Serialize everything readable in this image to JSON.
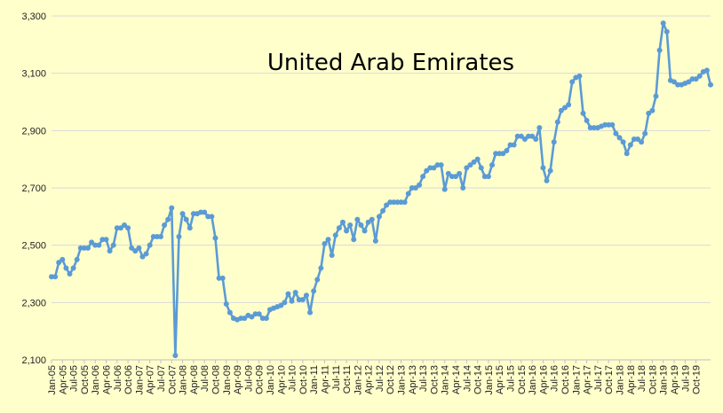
{
  "chart_data": {
    "type": "line",
    "title": "United Arab Emirates",
    "xlabel": "",
    "ylabel": "",
    "ylim": [
      2100,
      3300
    ],
    "yticks": [
      "2,100",
      "2,300",
      "2,500",
      "2,700",
      "2,900",
      "3,100",
      "3,300"
    ],
    "ytick_values": [
      2100,
      2300,
      2500,
      2700,
      2900,
      3100,
      3300
    ],
    "grid": true,
    "legend": "none",
    "line_color": "#5B9BD5",
    "grid_color": "#D9D9D9",
    "background": "#FFFFCC",
    "x_tick_labels": [
      "Jan-05",
      "Apr-05",
      "Jul-05",
      "Oct-05",
      "Jan-06",
      "Apr-06",
      "Jul-06",
      "Oct-06",
      "Jan-07",
      "Apr-07",
      "Jul-07",
      "Oct-07",
      "Jan-08",
      "Apr-08",
      "Jul-08",
      "Oct-08",
      "Jan-09",
      "Apr-09",
      "Jul-09",
      "Oct-09",
      "Jan-10",
      "Apr-10",
      "Jul-10",
      "Oct-10",
      "Jan-11",
      "Apr-11",
      "Jul-11",
      "Oct-11",
      "Jan-12",
      "Apr-12",
      "Jul-12",
      "Oct-12",
      "Jan-13",
      "Apr-13",
      "Jul-13",
      "Oct-13",
      "Jan-14",
      "Apr-14",
      "Jul-14",
      "Oct-14",
      "Jan-15",
      "Apr-15",
      "Jul-15",
      "Oct-15",
      "Jan-16",
      "Apr-16",
      "Jul-16",
      "Oct-16",
      "Jan-17",
      "Apr-17",
      "Jul-17",
      "Oct-17",
      "Jan-18",
      "Apr-18",
      "Jul-18",
      "Oct-18",
      "Jan-19",
      "Apr-19",
      "Jul-19",
      "Oct-19"
    ],
    "x_start": "Jan-05",
    "series": [
      {
        "values": [
          2390,
          2390,
          2440,
          2450,
          2420,
          2400,
          2420,
          2450,
          2490,
          2490,
          2490,
          2510,
          2500,
          2500,
          2520,
          2520,
          2480,
          2500,
          2560,
          2560,
          2570,
          2560,
          2490,
          2480,
          2490,
          2460,
          2470,
          2500,
          2530,
          2530,
          2530,
          2570,
          2590,
          2630,
          2115,
          2530,
          2610,
          2590,
          2560,
          2610,
          2610,
          2615,
          2615,
          2600,
          2600,
          2525,
          2385,
          2385,
          2295,
          2265,
          2245,
          2240,
          2245,
          2245,
          2255,
          2250,
          2260,
          2260,
          2245,
          2245,
          2275,
          2280,
          2285,
          2290,
          2300,
          2330,
          2305,
          2335,
          2310,
          2310,
          2325,
          2265,
          2340,
          2380,
          2420,
          2505,
          2520,
          2465,
          2535,
          2560,
          2580,
          2550,
          2570,
          2520,
          2590,
          2570,
          2550,
          2580,
          2590,
          2515,
          2600,
          2620,
          2640,
          2650,
          2650,
          2650,
          2650,
          2650,
          2680,
          2700,
          2700,
          2710,
          2740,
          2760,
          2770,
          2770,
          2780,
          2780,
          2695,
          2750,
          2740,
          2740,
          2750,
          2700,
          2770,
          2780,
          2790,
          2800,
          2770,
          2740,
          2740,
          2780,
          2820,
          2820,
          2820,
          2830,
          2850,
          2850,
          2880,
          2880,
          2870,
          2880,
          2880,
          2870,
          2910,
          2770,
          2725,
          2760,
          2860,
          2930,
          2970,
          2980,
          2990,
          3070,
          3085,
          3090,
          2960,
          2935,
          2910,
          2910,
          2910,
          2915,
          2920,
          2920,
          2920,
          2890,
          2875,
          2860,
          2820,
          2850,
          2870,
          2870,
          2860,
          2890,
          2960,
          2970,
          3020,
          3180,
          3275,
          3245,
          3075,
          3070,
          3060,
          3060,
          3065,
          3070,
          3080,
          3080,
          3090,
          3105,
          3110,
          3060
        ]
      }
    ]
  }
}
